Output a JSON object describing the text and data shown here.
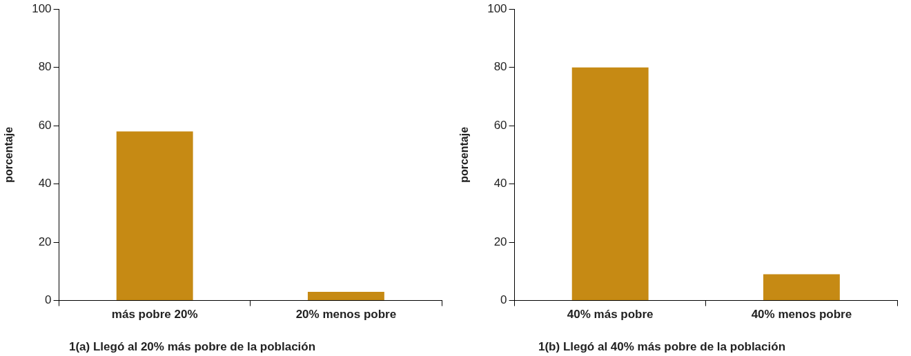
{
  "chart_data": [
    {
      "type": "bar",
      "title": "1(a) Llegó al  20% más pobre de la población",
      "ylabel": "porcentaje",
      "categories": [
        "más pobre 20%",
        "20% menos pobre"
      ],
      "values": [
        58,
        3
      ],
      "color": "#c68a14",
      "ylim": [
        0,
        100
      ],
      "yticks": [
        0,
        20,
        40,
        60,
        80,
        100
      ],
      "grid": false,
      "legend": false
    },
    {
      "type": "bar",
      "title": "1(b) Llegó al 40% más pobre de la población",
      "ylabel": "porcentaje",
      "categories": [
        "40% más pobre",
        "40% menos pobre"
      ],
      "values": [
        80,
        9
      ],
      "color": "#c68a14",
      "ylim": [
        0,
        100
      ],
      "yticks": [
        0,
        20,
        40,
        60,
        80,
        100
      ],
      "grid": false,
      "legend": false
    }
  ]
}
